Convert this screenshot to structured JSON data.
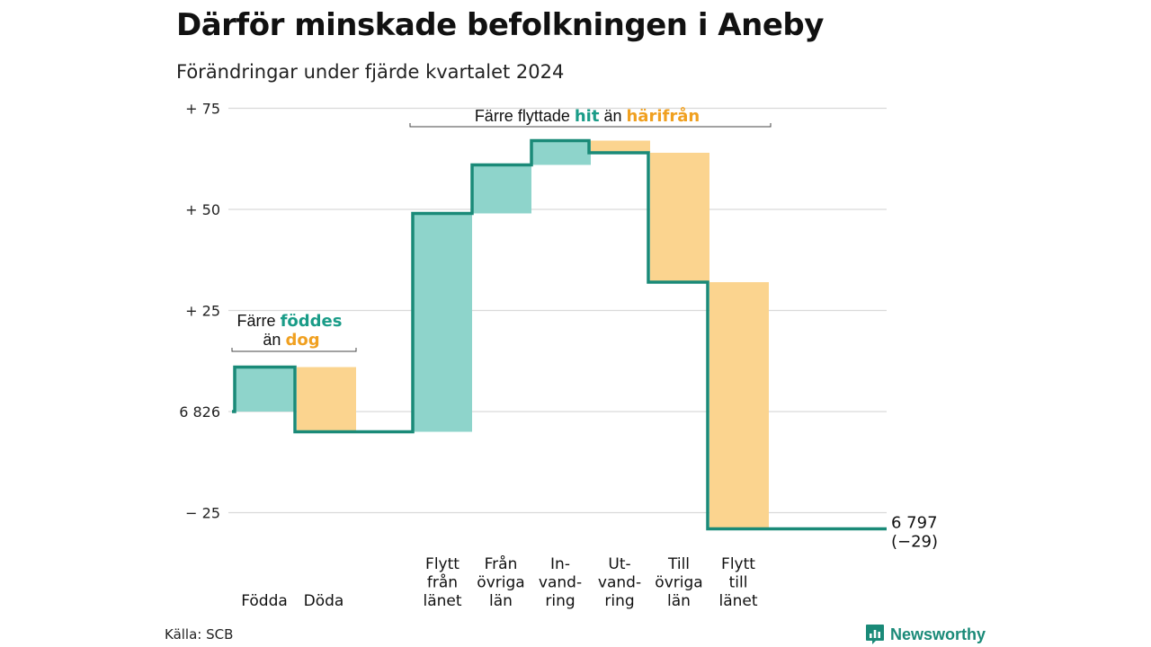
{
  "header": {
    "title": "Därför minskade befolkningen i Aneby",
    "subtitle": "Förändringar under fjärde kvartalet 2024"
  },
  "footer": {
    "source": "Källa: SCB",
    "brand": "Newsworthy"
  },
  "colors": {
    "increase": "#8ed4cb",
    "decrease": "#fbd48f",
    "line": "#1a8a78",
    "teal_text": "#1a9c88",
    "orange_text": "#f0a020",
    "grid": "#d9d9d9"
  },
  "annotations": {
    "births_deaths": {
      "line1_pre": "Färre ",
      "line1_highlight": "föddes",
      "line2_pre": "än ",
      "line2_highlight": "dog"
    },
    "migration": {
      "pre": "Färre flyttade ",
      "highlight1": "hit",
      "mid": " än ",
      "highlight2": "härifrån"
    }
  },
  "chart_data": {
    "type": "waterfall",
    "title": "Därför minskade befolkningen i Aneby",
    "subtitle": "Förändringar under fjärde kvartalet 2024",
    "start_value": 6826,
    "start_label": "6 826",
    "end_value": 6797,
    "end_label": "6 797",
    "end_change_label": "(−29)",
    "ylim": [
      -30,
      77
    ],
    "y_ticks": [
      {
        "value": 75,
        "label": "+ 75"
      },
      {
        "value": 50,
        "label": "+ 50"
      },
      {
        "value": 25,
        "label": "+ 25"
      },
      {
        "value": 0,
        "label": "6 826"
      },
      {
        "value": -25,
        "label": "− 25"
      }
    ],
    "grid": true,
    "steps": [
      {
        "category": "Födda",
        "label_lines": [
          "Födda"
        ],
        "change": 11,
        "kind": "increase"
      },
      {
        "category": "Döda",
        "label_lines": [
          "Döda"
        ],
        "change": -16,
        "kind": "decrease"
      },
      {
        "category": "Flytt från länet",
        "label_lines": [
          "Flytt",
          "från",
          "länet"
        ],
        "change": 54,
        "kind": "increase"
      },
      {
        "category": "Från övriga län",
        "label_lines": [
          "Från",
          "övriga",
          "län"
        ],
        "change": 12,
        "kind": "increase"
      },
      {
        "category": "In-vandring",
        "label_lines": [
          "In-",
          "vand-",
          "ring"
        ],
        "change": 6,
        "kind": "increase"
      },
      {
        "category": "Ut-vandring",
        "label_lines": [
          "Ut-",
          "vand-",
          "ring"
        ],
        "change": -3,
        "kind": "decrease"
      },
      {
        "category": "Till övriga län",
        "label_lines": [
          "Till",
          "övriga",
          "län"
        ],
        "change": -32,
        "kind": "decrease"
      },
      {
        "category": "Flytt till länet",
        "label_lines": [
          "Flytt",
          "till",
          "länet"
        ],
        "change": -61,
        "kind": "decrease"
      }
    ]
  }
}
